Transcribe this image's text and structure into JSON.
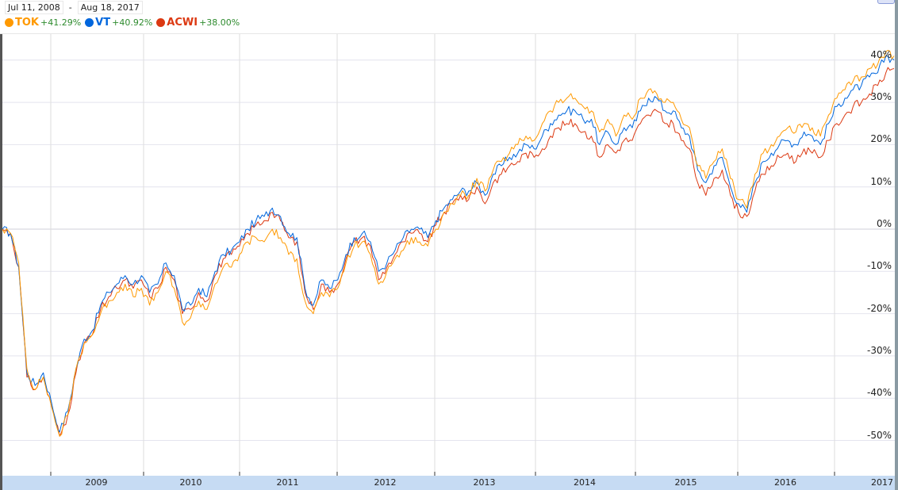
{
  "header": {
    "date_from": "Jul 11, 2008",
    "date_sep": "-",
    "date_to": "Aug 18, 2017"
  },
  "legend": [
    {
      "symbol": "TOK",
      "change": "+41.29%",
      "color": "#ff9900"
    },
    {
      "symbol": "VT",
      "change": "+40.92%",
      "color": "#0066dd"
    },
    {
      "symbol": "ACWI",
      "change": "+38.00%",
      "color": "#dc3912"
    }
  ],
  "colors": {
    "TOK": "#ff9900",
    "VT": "#0066dd",
    "ACWI": "#dc3912",
    "gain_text": "#2e8b2e",
    "axis_bar": "#c6dbf3",
    "gridline": "#e4e4ee"
  },
  "chart_data": {
    "type": "line",
    "title": "",
    "xlabel": "",
    "ylabel": "",
    "date_range": [
      "Jul 11, 2008",
      "Aug 18, 2017"
    ],
    "x_ticks": [
      "2009",
      "2010",
      "2011",
      "2012",
      "2013",
      "2014",
      "2015",
      "2016",
      "2017"
    ],
    "y_ticks": [
      "40%",
      "30%",
      "20%",
      "10%",
      "0%",
      "-10%",
      "-20%",
      "-30%",
      "-40%",
      "-50%"
    ],
    "ylim": [
      -55,
      45
    ],
    "grid": true,
    "legend_position": "top-left",
    "x": [
      "2008-07",
      "2008-08",
      "2008-09",
      "2008-10",
      "2008-11",
      "2008-12",
      "2009-01",
      "2009-02",
      "2009-03",
      "2009-04",
      "2009-05",
      "2009-06",
      "2009-07",
      "2009-08",
      "2009-09",
      "2009-10",
      "2009-11",
      "2009-12",
      "2010-01",
      "2010-02",
      "2010-03",
      "2010-04",
      "2010-05",
      "2010-06",
      "2010-07",
      "2010-08",
      "2010-09",
      "2010-10",
      "2010-11",
      "2010-12",
      "2011-01",
      "2011-02",
      "2011-03",
      "2011-04",
      "2011-05",
      "2011-06",
      "2011-07",
      "2011-08",
      "2011-09",
      "2011-10",
      "2011-11",
      "2011-12",
      "2012-01",
      "2012-02",
      "2012-03",
      "2012-04",
      "2012-05",
      "2012-06",
      "2012-07",
      "2012-08",
      "2012-09",
      "2012-10",
      "2012-11",
      "2012-12",
      "2013-01",
      "2013-02",
      "2013-03",
      "2013-04",
      "2013-05",
      "2013-06",
      "2013-07",
      "2013-08",
      "2013-09",
      "2013-10",
      "2013-11",
      "2013-12",
      "2014-01",
      "2014-02",
      "2014-03",
      "2014-04",
      "2014-05",
      "2014-06",
      "2014-07",
      "2014-08",
      "2014-09",
      "2014-10",
      "2014-11",
      "2014-12",
      "2015-01",
      "2015-02",
      "2015-03",
      "2015-04",
      "2015-05",
      "2015-06",
      "2015-07",
      "2015-08",
      "2015-09",
      "2015-10",
      "2015-11",
      "2015-12",
      "2016-01",
      "2016-02",
      "2016-03",
      "2016-04",
      "2016-05",
      "2016-06",
      "2016-07",
      "2016-08",
      "2016-09",
      "2016-10",
      "2016-11",
      "2016-12",
      "2017-01",
      "2017-02",
      "2017-03",
      "2017-04",
      "2017-05",
      "2017-06",
      "2017-07",
      "2017-08"
    ],
    "series": [
      {
        "name": "TOK",
        "final": "+41.29%",
        "values": [
          0,
          -1,
          -8,
          -33,
          -38,
          -35,
          -42,
          -49,
          -44,
          -33,
          -27,
          -25,
          -20,
          -17,
          -15,
          -13,
          -16,
          -14,
          -18,
          -15,
          -10,
          -14,
          -22,
          -21,
          -17,
          -19,
          -13,
          -9,
          -9,
          -6,
          -3,
          -2,
          -3,
          0,
          -2,
          -6,
          -7,
          -17,
          -20,
          -15,
          -16,
          -14,
          -8,
          -4,
          -3,
          -6,
          -13,
          -10,
          -7,
          -5,
          -2,
          -3,
          -4,
          0,
          4,
          6,
          8,
          8,
          12,
          9,
          14,
          16,
          18,
          20,
          22,
          21,
          25,
          28,
          30,
          31,
          31,
          29,
          28,
          23,
          26,
          22,
          27,
          26,
          31,
          33,
          32,
          30,
          30,
          26,
          24,
          15,
          12,
          16,
          19,
          12,
          7,
          5,
          13,
          18,
          20,
          22,
          24,
          23,
          25,
          24,
          22,
          27,
          31,
          33,
          35,
          36,
          38,
          39,
          42,
          41
        ]
      },
      {
        "name": "VT",
        "final": "+40.92%",
        "values": [
          0,
          -1,
          -9,
          -34,
          -37,
          -34,
          -41,
          -48,
          -43,
          -33,
          -26,
          -24,
          -18,
          -15,
          -13,
          -11,
          -13,
          -11,
          -15,
          -13,
          -8,
          -11,
          -19,
          -18,
          -14,
          -16,
          -10,
          -6,
          -5,
          -3,
          0,
          2,
          3,
          5,
          3,
          -1,
          -2,
          -14,
          -18,
          -12,
          -14,
          -12,
          -6,
          -2,
          -1,
          -3,
          -10,
          -8,
          -5,
          -2,
          0,
          0,
          -2,
          2,
          5,
          7,
          9,
          9,
          11,
          8,
          13,
          15,
          17,
          18,
          20,
          19,
          22,
          25,
          27,
          28,
          28,
          26,
          26,
          20,
          23,
          20,
          24,
          24,
          28,
          31,
          31,
          28,
          28,
          24,
          22,
          14,
          11,
          15,
          17,
          10,
          6,
          4,
          11,
          16,
          18,
          20,
          21,
          20,
          23,
          22,
          20,
          25,
          29,
          31,
          33,
          34,
          36,
          37,
          41,
          40
        ]
      },
      {
        "name": "ACWI",
        "final": "+38.00%",
        "values": [
          0,
          -1,
          -9,
          -35,
          -38,
          -35,
          -42,
          -49,
          -44,
          -34,
          -27,
          -25,
          -19,
          -16,
          -14,
          -12,
          -14,
          -12,
          -16,
          -14,
          -9,
          -12,
          -20,
          -19,
          -15,
          -17,
          -11,
          -7,
          -6,
          -4,
          -1,
          1,
          2,
          4,
          2,
          -2,
          -3,
          -15,
          -19,
          -13,
          -15,
          -13,
          -7,
          -3,
          -2,
          -4,
          -12,
          -9,
          -6,
          -3,
          -1,
          -1,
          -3,
          1,
          4,
          6,
          8,
          7,
          10,
          6,
          11,
          13,
          15,
          16,
          18,
          17,
          19,
          22,
          24,
          25,
          25,
          23,
          22,
          17,
          20,
          18,
          21,
          21,
          25,
          27,
          28,
          25,
          25,
          21,
          19,
          11,
          8,
          12,
          14,
          8,
          4,
          3,
          9,
          13,
          15,
          17,
          18,
          16,
          19,
          18,
          17,
          21,
          25,
          27,
          29,
          30,
          32,
          34,
          37,
          38
        ]
      }
    ]
  }
}
